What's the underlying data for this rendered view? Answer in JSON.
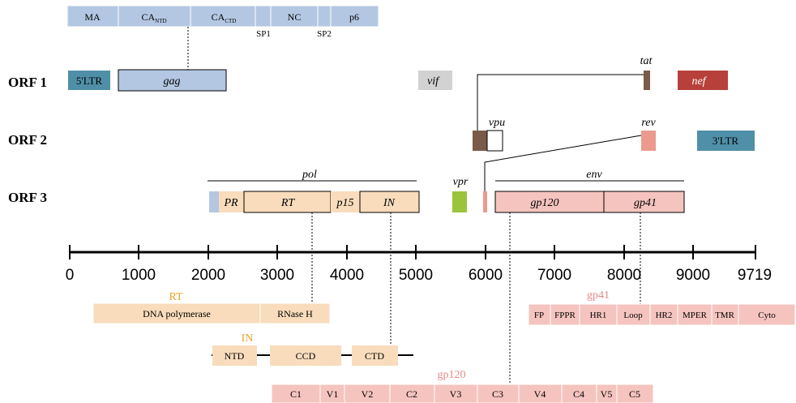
{
  "colors": {
    "gag_blue": "#b4c7e2",
    "gag_border": "#8faad4",
    "ltr_teal": "#4f8fa7",
    "vif_gray": "#d2d2d2",
    "nef_red": "#b8403a",
    "tat_brown": "#7a5a48",
    "rev_salmon": "#ec9a8e",
    "pol_peach": "#f8dcbc",
    "env_pink": "#f5c4bf",
    "vpr_green": "#9ac43c",
    "rt_label_orange": "#f0a030",
    "gp_label_pink": "#e8898a",
    "axis_black": "#000000"
  },
  "gag_domains": [
    {
      "main": "MA",
      "sub": ""
    },
    {
      "main": "CA",
      "sub": "NTD"
    },
    {
      "main": "CA",
      "sub": "CTD"
    },
    {
      "main": "",
      "sub": ""
    },
    {
      "main": "NC",
      "sub": ""
    },
    {
      "main": "",
      "sub": ""
    },
    {
      "main": "p6",
      "sub": ""
    }
  ],
  "gag_spacers": [
    "SP1",
    "SP2"
  ],
  "orf_labels": [
    "ORF 1",
    "ORF 2",
    "ORF 3"
  ],
  "orf1": {
    "ltr5": "5'LTR",
    "gag": "gag",
    "vif": "vif",
    "tat": "tat",
    "nef": "nef"
  },
  "orf2": {
    "vpu": "vpu",
    "rev": "rev",
    "ltr3": "3'LTR"
  },
  "orf3": {
    "pol": "pol",
    "env": "env",
    "vpr": "vpr",
    "pr": "PR",
    "rt": "RT",
    "p15": "p15",
    "in": "IN",
    "gp120": "gp120",
    "gp41": "gp41"
  },
  "axis": {
    "ticks": [
      "0",
      "1000",
      "2000",
      "3000",
      "4000",
      "5000",
      "6000",
      "7000",
      "8000",
      "9000"
    ],
    "end_label": "9719"
  },
  "rt_detail": {
    "title": "RT",
    "domains": [
      "DNA polymerase",
      "RNase H"
    ]
  },
  "in_detail": {
    "title": "IN",
    "domains": [
      "NTD",
      "CCD",
      "CTD"
    ]
  },
  "gp41_detail": {
    "title": "gp41",
    "domains": [
      "FP",
      "FPPR",
      "HR1",
      "Loop",
      "HR2",
      "MPER",
      "TMR",
      "Cyto"
    ]
  },
  "gp120_detail": {
    "title": "gp120",
    "domains": [
      "C1",
      "V1",
      "V2",
      "C2",
      "V3",
      "C3",
      "V4",
      "C4",
      "V5",
      "C5"
    ]
  }
}
